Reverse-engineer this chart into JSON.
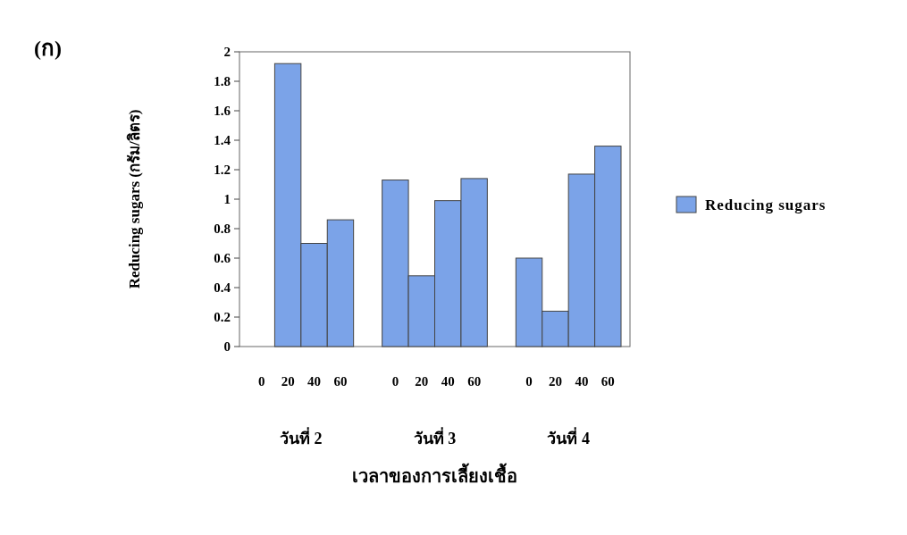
{
  "chart_data": {
    "type": "bar",
    "title": "(ก)",
    "ylabel": "Reducing sugars (กรัม/ลิตร)",
    "xlabel": "เวลาของการเลี้ยงเชื้อ",
    "categories": [
      "0",
      "20",
      "40",
      "60",
      "0",
      "20",
      "40",
      "60",
      "0",
      "20",
      "40",
      "60"
    ],
    "series": [
      {
        "name": "Reducing sugars",
        "color": "#7ba3e8",
        "values": [
          0,
          1.92,
          0.7,
          0.86,
          1.13,
          0.48,
          0.99,
          1.14,
          0.6,
          0.24,
          1.17,
          1.36
        ]
      }
    ],
    "annotations": [
      "วันที่ 2",
      "วันที่ 3",
      "วันที่ 4"
    ],
    "ylim": [
      0,
      2
    ],
    "yticks": [
      0,
      0.2,
      0.4,
      0.6,
      0.8,
      1,
      1.2,
      1.4,
      1.6,
      1.8,
      2
    ],
    "legend": "right",
    "grid": false
  }
}
